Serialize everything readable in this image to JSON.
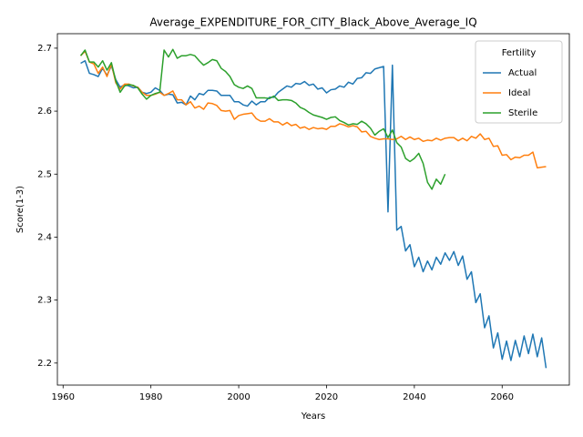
{
  "chart_data": {
    "type": "line",
    "title": "Average_EXPENDITURE_FOR_CITY_Black_Above_Average_IQ",
    "x_label": "Years",
    "y_label": "Score(1-3)",
    "legend_title": "Fertility",
    "legend_position": "upper right",
    "grid": false,
    "xlim": [
      1958.7,
      2075.3
    ],
    "ylim": [
      2.165,
      2.723
    ],
    "xticks": [
      1960,
      1980,
      2000,
      2020,
      2040,
      2060
    ],
    "yticks": [
      2.2,
      2.3,
      2.4,
      2.5,
      2.6,
      2.7
    ],
    "x": [
      1964,
      1965,
      1966,
      1967,
      1968,
      1969,
      1970,
      1971,
      1972,
      1973,
      1974,
      1975,
      1976,
      1977,
      1978,
      1979,
      1980,
      1981,
      1982,
      1983,
      1984,
      1985,
      1986,
      1987,
      1988,
      1989,
      1990,
      1991,
      1992,
      1993,
      1994,
      1995,
      1996,
      1997,
      1998,
      1999,
      2000,
      2001,
      2002,
      2003,
      2004,
      2005,
      2006,
      2007,
      2008,
      2009,
      2010,
      2011,
      2012,
      2013,
      2014,
      2015,
      2016,
      2017,
      2018,
      2019,
      2020,
      2021,
      2022,
      2023,
      2024,
      2025,
      2026,
      2027,
      2028,
      2029,
      2030,
      2031,
      2032,
      2033,
      2034,
      2035,
      2036,
      2037,
      2038,
      2039,
      2040,
      2041,
      2042,
      2043,
      2044,
      2045,
      2046,
      2047,
      2048,
      2049,
      2050,
      2051,
      2052,
      2053,
      2054,
      2055,
      2056,
      2057,
      2058,
      2059,
      2060,
      2061,
      2062,
      2063,
      2064,
      2065,
      2066,
      2067,
      2068,
      2069,
      2070
    ],
    "series": [
      {
        "name": "Actual",
        "color": "#1f77b4",
        "values": [
          2.676,
          2.68,
          2.66,
          2.658,
          2.655,
          2.668,
          2.657,
          2.672,
          2.65,
          2.638,
          2.642,
          2.64,
          2.637,
          2.638,
          2.63,
          2.628,
          2.63,
          2.637,
          2.633,
          2.625,
          2.627,
          2.626,
          2.613,
          2.614,
          2.61,
          2.624,
          2.618,
          2.628,
          2.626,
          2.633,
          2.633,
          2.632,
          2.625,
          2.625,
          2.625,
          2.615,
          2.615,
          2.61,
          2.608,
          2.616,
          2.61,
          2.615,
          2.615,
          2.622,
          2.622,
          2.63,
          2.635,
          2.64,
          2.638,
          2.644,
          2.643,
          2.647,
          2.641,
          2.643,
          2.635,
          2.637,
          2.629,
          2.634,
          2.635,
          2.64,
          2.638,
          2.646,
          2.643,
          2.652,
          2.653,
          2.661,
          2.66,
          2.667,
          2.669,
          2.671,
          2.44,
          2.673,
          2.411,
          2.417,
          2.378,
          2.388,
          2.353,
          2.368,
          2.345,
          2.362,
          2.348,
          2.368,
          2.357,
          2.375,
          2.363,
          2.377,
          2.355,
          2.37,
          2.333,
          2.345,
          2.296,
          2.31,
          2.256,
          2.275,
          2.224,
          2.248,
          2.206,
          2.235,
          2.204,
          2.236,
          2.21,
          2.243,
          2.215,
          2.246,
          2.21,
          2.24,
          2.192
        ]
      },
      {
        "name": "Ideal",
        "color": "#ff7f0e",
        "values": [
          2.688,
          2.695,
          2.678,
          2.675,
          2.66,
          2.67,
          2.655,
          2.675,
          2.645,
          2.635,
          2.643,
          2.643,
          2.64,
          2.638,
          2.63,
          2.625,
          2.625,
          2.627,
          2.63,
          2.625,
          2.628,
          2.632,
          2.618,
          2.618,
          2.61,
          2.615,
          2.605,
          2.608,
          2.603,
          2.613,
          2.612,
          2.609,
          2.601,
          2.6,
          2.601,
          2.587,
          2.593,
          2.595,
          2.596,
          2.597,
          2.588,
          2.584,
          2.584,
          2.588,
          2.583,
          2.583,
          2.578,
          2.582,
          2.577,
          2.579,
          2.573,
          2.575,
          2.571,
          2.574,
          2.572,
          2.573,
          2.571,
          2.576,
          2.576,
          2.58,
          2.578,
          2.575,
          2.577,
          2.575,
          2.567,
          2.568,
          2.56,
          2.557,
          2.555,
          2.556,
          2.556,
          2.555,
          2.556,
          2.56,
          2.555,
          2.559,
          2.555,
          2.557,
          2.552,
          2.554,
          2.553,
          2.557,
          2.554,
          2.557,
          2.558,
          2.558,
          2.553,
          2.557,
          2.553,
          2.56,
          2.557,
          2.564,
          2.555,
          2.557,
          2.544,
          2.545,
          2.53,
          2.531,
          2.523,
          2.527,
          2.526,
          2.53,
          2.53,
          2.535,
          2.51,
          2.511,
          2.512
        ]
      },
      {
        "name": "Sterile",
        "color": "#2ca02c",
        "values": [
          2.688,
          2.697,
          2.678,
          2.678,
          2.67,
          2.68,
          2.665,
          2.677,
          2.648,
          2.63,
          2.64,
          2.642,
          2.641,
          2.637,
          2.627,
          2.619,
          2.625,
          2.628,
          2.63,
          2.697,
          2.686,
          2.698,
          2.684,
          2.688,
          2.688,
          2.69,
          2.688,
          2.68,
          2.673,
          2.677,
          2.682,
          2.68,
          2.668,
          2.663,
          2.655,
          2.642,
          2.638,
          2.636,
          2.64,
          2.636,
          2.621,
          2.621,
          2.621,
          2.62,
          2.624,
          2.617,
          2.618,
          2.618,
          2.617,
          2.613,
          2.606,
          2.603,
          2.598,
          2.594,
          2.592,
          2.59,
          2.587,
          2.59,
          2.591,
          2.585,
          2.582,
          2.578,
          2.58,
          2.579,
          2.584,
          2.58,
          2.573,
          2.562,
          2.568,
          2.572,
          2.558,
          2.57,
          2.55,
          2.543,
          2.525,
          2.52,
          2.525,
          2.533,
          2.517,
          2.487,
          2.476,
          2.492,
          2.484,
          2.5,
          null,
          null,
          null,
          null,
          null,
          null,
          null,
          null,
          null,
          null,
          null,
          null,
          null,
          null,
          null,
          null,
          null,
          null,
          null,
          null,
          null,
          null,
          null
        ]
      }
    ]
  }
}
